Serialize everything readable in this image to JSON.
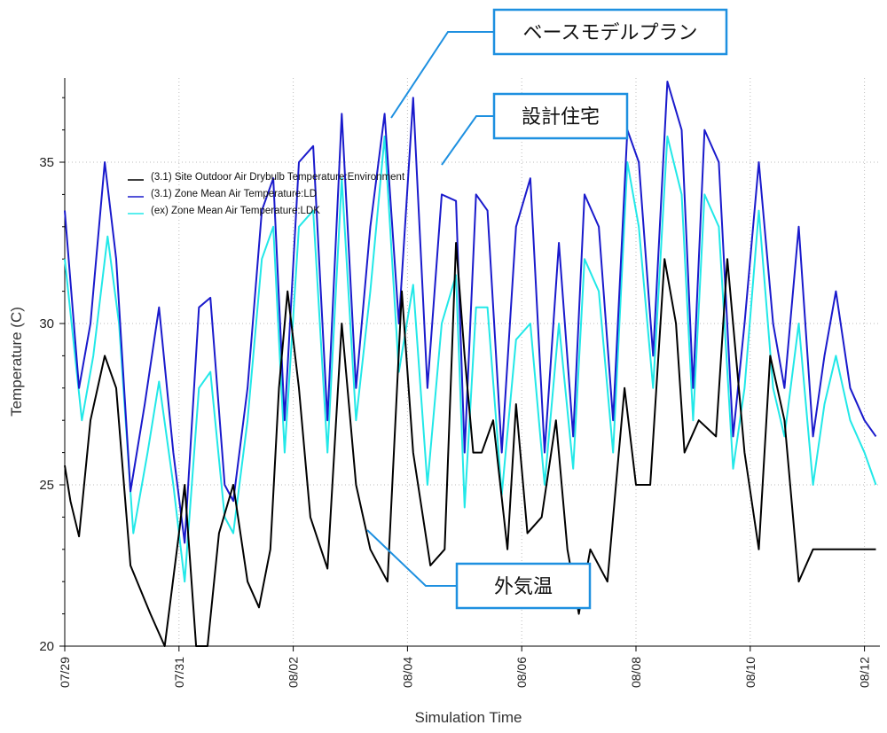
{
  "chart_data": {
    "type": "line",
    "title": "",
    "xlabel": "Simulation Time",
    "ylabel": "Temperature (C)",
    "y_ticks": [
      20,
      25,
      30,
      35
    ],
    "ylim": [
      20,
      37.7
    ],
    "x_ticks": [
      "07/29",
      "07/31",
      "08/02",
      "08/04",
      "08/06",
      "08/08",
      "08/10",
      "08/12"
    ],
    "x_range_days": [
      0,
      14.2
    ],
    "grid": true,
    "legend_position": "top-left",
    "series": [
      {
        "name": "(3.1) Site Outdoor Air Drybulb Temperature:Environment",
        "color": "#000000",
        "x_days": [
          0.0,
          0.1,
          0.25,
          0.45,
          0.7,
          0.9,
          1.15,
          1.5,
          1.75,
          2.0,
          2.1,
          2.3,
          2.5,
          2.7,
          2.95,
          3.2,
          3.4,
          3.6,
          3.75,
          3.9,
          4.1,
          4.3,
          4.6,
          4.85,
          5.1,
          5.35,
          5.65,
          5.9,
          6.1,
          6.4,
          6.65,
          6.85,
          7.0,
          7.15,
          7.3,
          7.5,
          7.75,
          7.9,
          8.1,
          8.35,
          8.6,
          8.8,
          9.0,
          9.2,
          9.5,
          9.8,
          10.0,
          10.25,
          10.5,
          10.7,
          10.85,
          11.1,
          11.4,
          11.6,
          11.9,
          12.15,
          12.35,
          12.6,
          12.85,
          13.1,
          13.3,
          13.5,
          13.75,
          14.0,
          14.2
        ],
        "values": [
          25.6,
          24.5,
          23.4,
          27.0,
          29.0,
          28.0,
          22.5,
          21.0,
          20.0,
          23.5,
          25.0,
          20.0,
          20.0,
          23.5,
          25.0,
          22.0,
          21.2,
          23.0,
          28.0,
          31.0,
          28.0,
          24.0,
          22.4,
          30.0,
          25.0,
          23.0,
          22.0,
          31.0,
          26.0,
          22.5,
          23.0,
          32.5,
          29.0,
          26.0,
          26.0,
          27.0,
          23.0,
          27.5,
          23.5,
          24.0,
          27.0,
          23.0,
          21.0,
          23.0,
          22.0,
          28.0,
          25.0,
          25.0,
          32.0,
          30.0,
          26.0,
          27.0,
          26.5,
          32.0,
          26.0,
          23.0,
          29.0,
          27.0,
          22.0,
          23.0,
          23.0,
          23.0,
          23.0,
          23.0,
          23.0
        ]
      },
      {
        "name": "(3.1) Zone Mean Air Temperature:LD",
        "color": "#1a1acc",
        "x_days": [
          0.0,
          0.25,
          0.45,
          0.7,
          0.9,
          1.15,
          1.4,
          1.65,
          1.9,
          2.1,
          2.35,
          2.55,
          2.8,
          2.95,
          3.2,
          3.45,
          3.65,
          3.85,
          4.1,
          4.35,
          4.6,
          4.85,
          5.1,
          5.35,
          5.6,
          5.85,
          6.1,
          6.35,
          6.6,
          6.85,
          7.0,
          7.2,
          7.4,
          7.65,
          7.9,
          8.15,
          8.4,
          8.65,
          8.9,
          9.1,
          9.35,
          9.6,
          9.85,
          10.05,
          10.3,
          10.55,
          10.8,
          11.0,
          11.2,
          11.45,
          11.7,
          11.9,
          12.15,
          12.4,
          12.6,
          12.85,
          13.1,
          13.3,
          13.5,
          13.75,
          14.0,
          14.2
        ],
        "values": [
          33.5,
          28.0,
          30.0,
          35.0,
          32.0,
          24.8,
          27.5,
          30.5,
          26.0,
          23.2,
          30.5,
          30.8,
          25.0,
          24.5,
          28.0,
          33.5,
          34.5,
          27.0,
          35.0,
          35.5,
          27.0,
          36.5,
          28.0,
          33.0,
          36.5,
          30.0,
          37.0,
          28.0,
          34.0,
          33.8,
          26.0,
          34.0,
          33.5,
          26.0,
          33.0,
          34.5,
          26.0,
          32.5,
          26.5,
          34.0,
          33.0,
          27.0,
          36.0,
          35.0,
          29.0,
          37.5,
          36.0,
          28.0,
          36.0,
          35.0,
          26.5,
          30.0,
          35.0,
          30.0,
          28.0,
          33.0,
          26.5,
          29.0,
          31.0,
          28.0,
          27.0,
          26.5
        ]
      },
      {
        "name": "(ex) Zone Mean Air Temperature:LDK",
        "color": "#22e8e8",
        "x_days": [
          0.0,
          0.3,
          0.5,
          0.75,
          0.95,
          1.2,
          1.45,
          1.65,
          1.9,
          2.1,
          2.35,
          2.55,
          2.8,
          2.95,
          3.2,
          3.45,
          3.65,
          3.85,
          4.1,
          4.35,
          4.6,
          4.85,
          5.1,
          5.35,
          5.6,
          5.85,
          6.1,
          6.35,
          6.6,
          6.85,
          7.0,
          7.2,
          7.4,
          7.65,
          7.9,
          8.15,
          8.4,
          8.65,
          8.9,
          9.1,
          9.35,
          9.6,
          9.85,
          10.05,
          10.3,
          10.55,
          10.8,
          11.0,
          11.2,
          11.45,
          11.7,
          11.9,
          12.15,
          12.4,
          12.6,
          12.85,
          13.1,
          13.3,
          13.5,
          13.75,
          14.0,
          14.2
        ],
        "values": [
          32.0,
          27.0,
          29.0,
          32.7,
          30.0,
          23.5,
          26.0,
          28.2,
          25.0,
          22.0,
          28.0,
          28.5,
          24.0,
          23.5,
          27.0,
          32.0,
          33.0,
          26.0,
          33.0,
          33.5,
          26.0,
          34.5,
          27.0,
          31.0,
          35.8,
          28.5,
          31.2,
          25.0,
          30.0,
          31.5,
          24.3,
          30.5,
          30.5,
          24.7,
          29.5,
          30.0,
          25.0,
          30.0,
          25.5,
          32.0,
          31.0,
          26.0,
          35.0,
          33.0,
          28.0,
          35.8,
          34.0,
          27.0,
          34.0,
          33.0,
          25.5,
          28.0,
          33.5,
          28.0,
          26.5,
          30.0,
          25.0,
          27.5,
          29.0,
          27.0,
          26.0,
          25.0
        ]
      }
    ]
  },
  "callouts": [
    {
      "text": "ベースモデルプラン",
      "series": 1
    },
    {
      "text": "設計住宅",
      "series": 2
    },
    {
      "text": "外気温",
      "series": 0
    }
  ],
  "colors": {
    "callout_border": "#1e90e0",
    "grid": "#bbbbbb"
  }
}
